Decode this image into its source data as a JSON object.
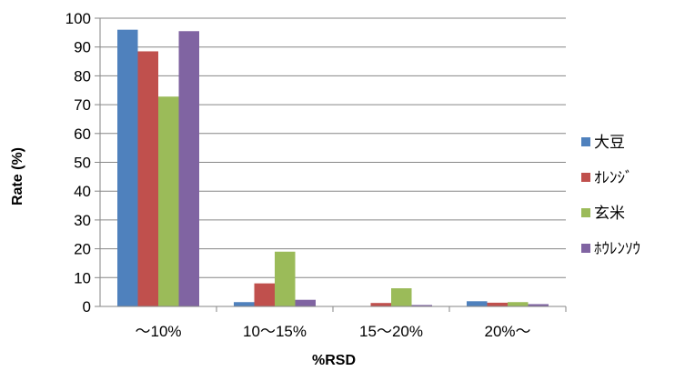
{
  "chart_data": {
    "type": "bar",
    "categories": [
      "～10%",
      "10～15%",
      "15～20%",
      "20%～"
    ],
    "series": [
      {
        "name": "大豆",
        "color": "#4F81BD",
        "values": [
          96,
          1.5,
          0,
          1.8
        ]
      },
      {
        "name": "ｵﾚﾝｼﾞ",
        "color": "#C0504D",
        "values": [
          88.5,
          8,
          1.2,
          1.3
        ]
      },
      {
        "name": "玄米",
        "color": "#9BBB59",
        "values": [
          72.8,
          19,
          6.3,
          1.5
        ]
      },
      {
        "name": "ﾎｳﾚﾝｿｳ",
        "color": "#8064A2",
        "values": [
          95.5,
          2.3,
          0.5,
          0.8
        ]
      }
    ],
    "xlabel": "%RSD",
    "ylabel": "Rate (%)",
    "ylim": [
      0,
      100
    ],
    "yticks": [
      "0",
      "10",
      "20",
      "30",
      "40",
      "50",
      "60",
      "70",
      "80",
      "90",
      "100"
    ],
    "grid": true,
    "legend_position": "right"
  }
}
